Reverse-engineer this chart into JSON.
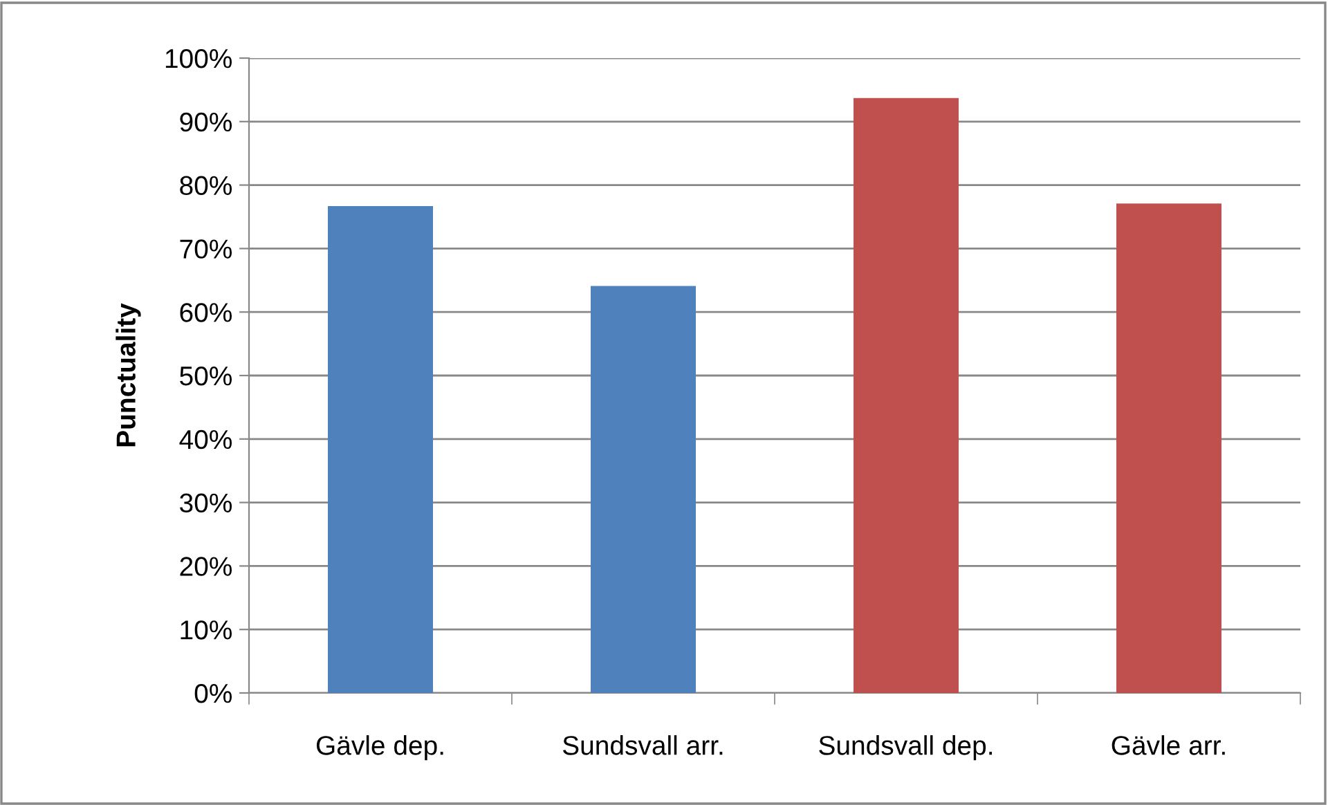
{
  "chart_data": {
    "type": "bar",
    "ylabel": "Punctuality",
    "categories": [
      "Gävle dep.",
      "Sundsvall arr.",
      "Sundsvall dep.",
      "Gävle arr."
    ],
    "values": [
      76.7,
      64.1,
      93.7,
      77.1
    ],
    "colors": [
      "#4f81bd",
      "#4f81bd",
      "#c0504d",
      "#c0504d"
    ],
    "ylim": [
      0,
      100
    ],
    "yticks": [
      {
        "value": 0,
        "label": "0%"
      },
      {
        "value": 10,
        "label": "10%"
      },
      {
        "value": 20,
        "label": "20%"
      },
      {
        "value": 30,
        "label": "30%"
      },
      {
        "value": 40,
        "label": "40%"
      },
      {
        "value": 50,
        "label": "50%"
      },
      {
        "value": 60,
        "label": "60%"
      },
      {
        "value": 70,
        "label": "70%"
      },
      {
        "value": 80,
        "label": "80%"
      },
      {
        "value": 90,
        "label": "90%"
      },
      {
        "value": 100,
        "label": "100%"
      }
    ],
    "grid": "y",
    "legend": false
  }
}
